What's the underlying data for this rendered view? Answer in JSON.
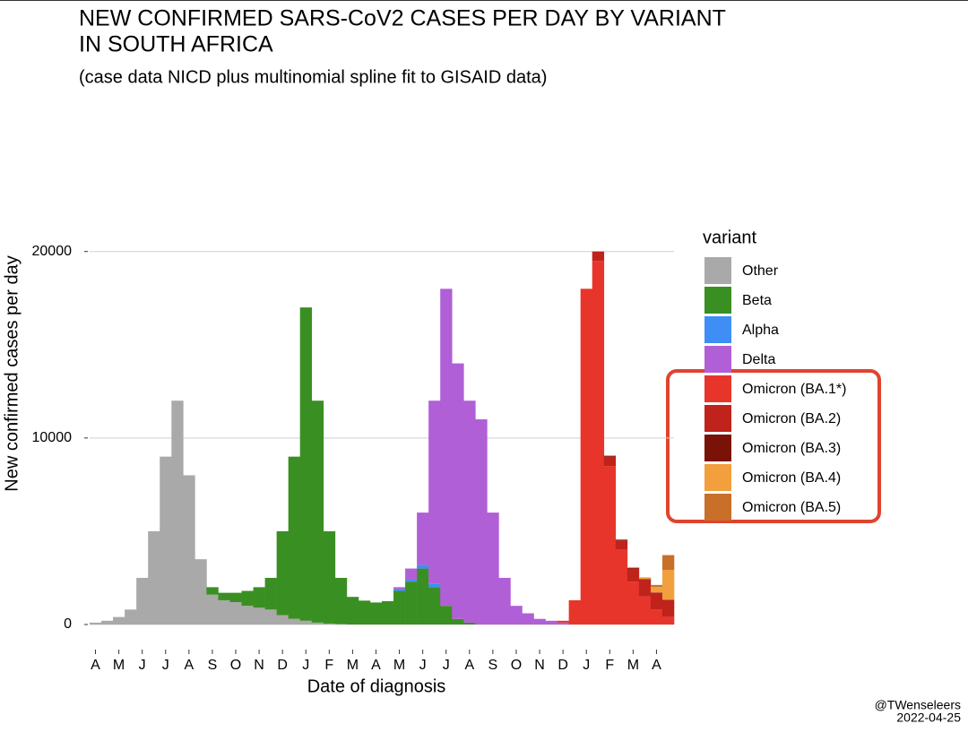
{
  "chart_data": {
    "type": "bar",
    "stacked": true,
    "title": [
      "NEW CONFIRMED SARS-CoV2 CASES PER DAY BY VARIANT",
      "IN SOUTH AFRICA"
    ],
    "subtitle": "(case data NICD plus multinomial spline fit to GISAID data)",
    "x_label": "Date of diagnosis",
    "y_label": "New confirmed cases per day",
    "legend_title": "variant",
    "caption": [
      "@TWenseleers",
      "2022-04-25"
    ],
    "categories": [
      "A",
      null,
      "M",
      null,
      "J",
      null,
      "J",
      null,
      "A",
      null,
      "S",
      null,
      "O",
      null,
      "N",
      null,
      "D",
      null,
      "J",
      null,
      "F",
      null,
      "M",
      null,
      "A",
      null,
      "M",
      null,
      "J",
      null,
      "J",
      null,
      "A",
      null,
      "S",
      null,
      "O",
      null,
      "N",
      null,
      "D",
      null,
      "J",
      null,
      "F",
      null,
      "M",
      null,
      "A",
      null
    ],
    "ylim": [
      0,
      27000
    ],
    "yticks": [
      0,
      10000,
      20000
    ],
    "grid": true,
    "series": [
      {
        "name": "Other",
        "color": "#a9a9a9",
        "values": [
          100,
          200,
          400,
          800,
          2500,
          5000,
          9000,
          12000,
          8000,
          3500,
          1600,
          1300,
          1200,
          1000,
          900,
          800,
          500,
          300,
          200,
          100,
          50,
          20,
          0,
          0,
          0,
          0,
          0,
          0,
          0,
          0,
          0,
          0,
          0,
          0,
          0,
          0,
          0,
          0,
          0,
          0,
          0,
          0,
          0,
          0,
          0,
          0,
          0,
          0,
          0,
          0
        ]
      },
      {
        "name": "Beta",
        "color": "#3a8f22",
        "values": [
          0,
          0,
          0,
          0,
          0,
          0,
          0,
          0,
          0,
          0,
          400,
          400,
          500,
          800,
          1100,
          1700,
          4500,
          8700,
          16800,
          11900,
          4950,
          2480,
          1480,
          1280,
          1180,
          1250,
          1800,
          2300,
          3000,
          2000,
          1000,
          300,
          100,
          0,
          0,
          0,
          0,
          0,
          0,
          0,
          0,
          0,
          0,
          0,
          0,
          0,
          0,
          0,
          0,
          0
        ]
      },
      {
        "name": "Alpha",
        "color": "#3f8ef5",
        "values": [
          0,
          0,
          0,
          0,
          0,
          0,
          0,
          0,
          0,
          0,
          0,
          0,
          0,
          0,
          0,
          0,
          0,
          0,
          0,
          0,
          0,
          0,
          0,
          0,
          0,
          0,
          100,
          100,
          200,
          200,
          0,
          0,
          0,
          0,
          0,
          0,
          0,
          0,
          0,
          0,
          0,
          0,
          0,
          0,
          0,
          0,
          0,
          0,
          0,
          0
        ]
      },
      {
        "name": "Delta",
        "color": "#b15fd6",
        "values": [
          0,
          0,
          0,
          0,
          0,
          0,
          0,
          0,
          0,
          0,
          0,
          0,
          0,
          0,
          0,
          0,
          0,
          0,
          0,
          0,
          0,
          0,
          0,
          0,
          0,
          0,
          100,
          600,
          2800,
          9800,
          17000,
          13700,
          11900,
          11000,
          6000,
          2500,
          1000,
          600,
          300,
          200,
          100,
          0,
          0,
          0,
          0,
          0,
          0,
          0,
          0,
          0
        ]
      },
      {
        "name": "Omicron (BA.1*)",
        "color": "#e8352b",
        "values": [
          0,
          0,
          0,
          0,
          0,
          0,
          0,
          0,
          0,
          0,
          0,
          0,
          0,
          0,
          0,
          0,
          0,
          0,
          0,
          0,
          0,
          0,
          0,
          0,
          0,
          0,
          0,
          0,
          0,
          0,
          0,
          0,
          0,
          0,
          0,
          0,
          0,
          0,
          0,
          0,
          100,
          1300,
          18000,
          19500,
          8500,
          4000,
          2300,
          1500,
          800,
          400
        ]
      },
      {
        "name": "Omicron (BA.2)",
        "color": "#c0221c",
        "values": [
          0,
          0,
          0,
          0,
          0,
          0,
          0,
          0,
          0,
          0,
          0,
          0,
          0,
          0,
          0,
          0,
          0,
          0,
          0,
          0,
          0,
          0,
          0,
          0,
          0,
          0,
          0,
          0,
          0,
          0,
          0,
          0,
          0,
          0,
          0,
          0,
          0,
          0,
          0,
          0,
          0,
          0,
          0,
          500,
          500,
          500,
          700,
          900,
          900,
          900
        ]
      },
      {
        "name": "Omicron (BA.3)",
        "color": "#7a1208",
        "values": [
          0,
          0,
          0,
          0,
          0,
          0,
          0,
          0,
          0,
          0,
          0,
          0,
          0,
          0,
          0,
          0,
          0,
          0,
          0,
          0,
          0,
          0,
          0,
          0,
          0,
          0,
          0,
          0,
          0,
          0,
          0,
          0,
          0,
          0,
          0,
          0,
          0,
          0,
          0,
          0,
          0,
          0,
          0,
          0,
          50,
          50,
          30,
          30,
          20,
          20
        ]
      },
      {
        "name": "Omicron (BA.4)",
        "color": "#f2a03d",
        "values": [
          0,
          0,
          0,
          0,
          0,
          0,
          0,
          0,
          0,
          0,
          0,
          0,
          0,
          0,
          0,
          0,
          0,
          0,
          0,
          0,
          0,
          0,
          0,
          0,
          0,
          0,
          0,
          0,
          0,
          0,
          0,
          0,
          0,
          0,
          0,
          0,
          0,
          0,
          0,
          0,
          0,
          0,
          0,
          0,
          0,
          0,
          50,
          100,
          300,
          1600
        ]
      },
      {
        "name": "Omicron (BA.5)",
        "color": "#c86f2a",
        "values": [
          0,
          0,
          0,
          0,
          0,
          0,
          0,
          0,
          0,
          0,
          0,
          0,
          0,
          0,
          0,
          0,
          0,
          0,
          0,
          0,
          0,
          0,
          0,
          0,
          0,
          0,
          0,
          0,
          0,
          0,
          0,
          0,
          0,
          0,
          0,
          0,
          0,
          0,
          0,
          0,
          0,
          0,
          0,
          0,
          0,
          0,
          0,
          0,
          100,
          800
        ]
      }
    ]
  }
}
